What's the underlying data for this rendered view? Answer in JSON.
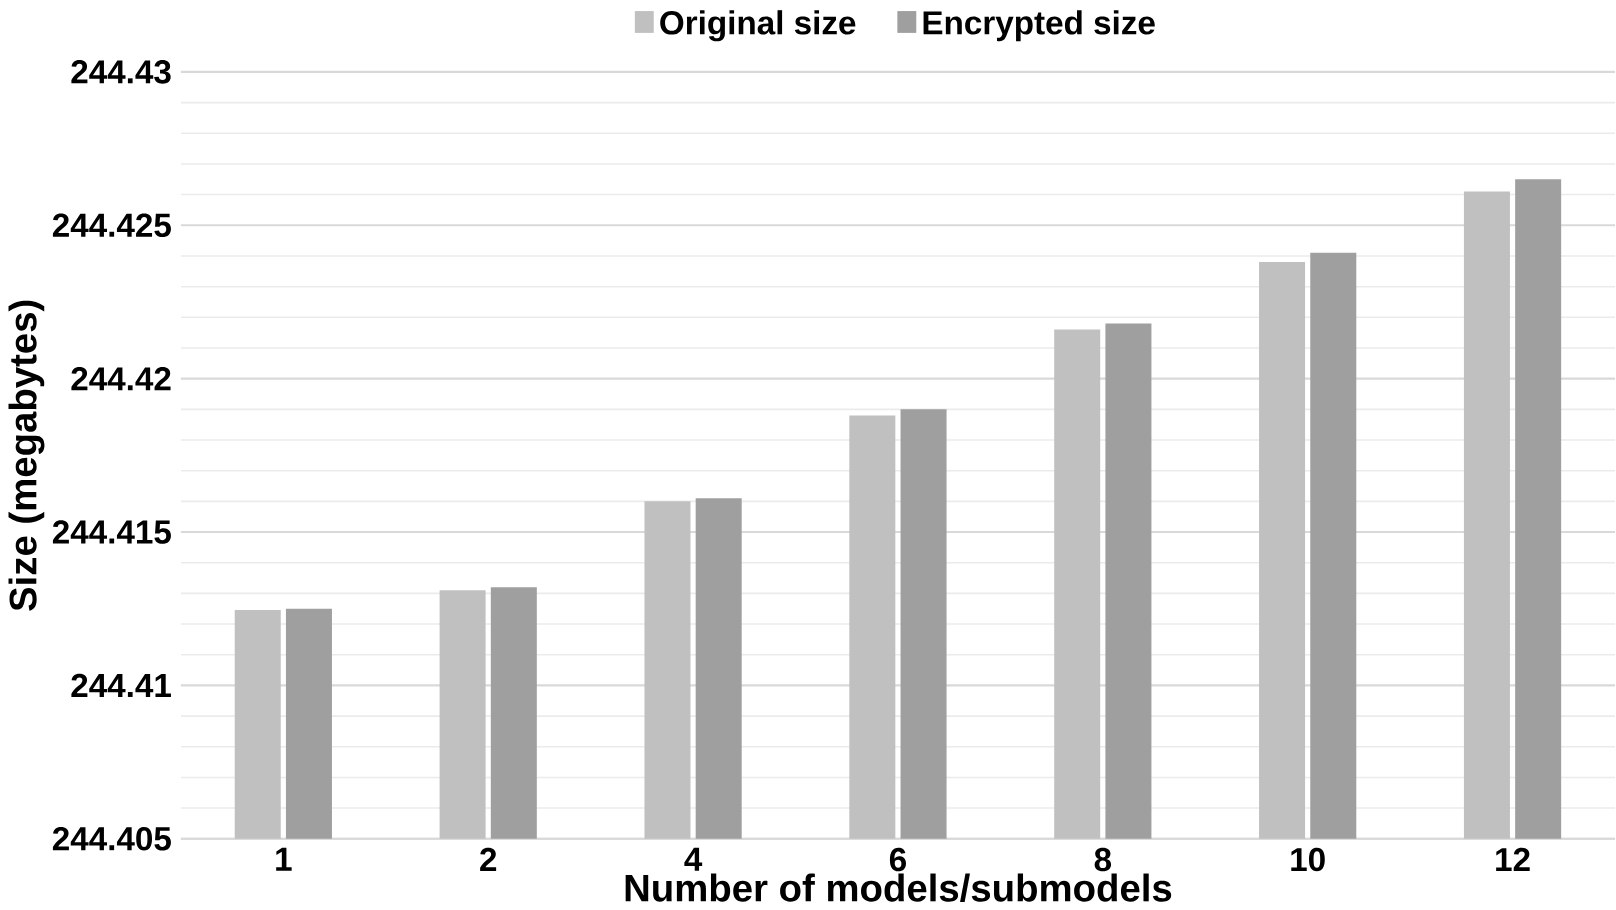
{
  "chart_data": {
    "type": "bar",
    "xlabel": "Number of models/submodels",
    "ylabel": "Size (megabytes)",
    "categories": [
      "1",
      "2",
      "4",
      "6",
      "8",
      "10",
      "12"
    ],
    "series": [
      {
        "name": "Original size",
        "color": "#c0c0c0",
        "values": [
          244.41246,
          244.4131,
          244.416,
          244.4188,
          244.4216,
          244.4238,
          244.4261
        ]
      },
      {
        "name": "Encrypted size",
        "color": "#9f9f9f",
        "values": [
          244.4125,
          244.4132,
          244.4161,
          244.419,
          244.4218,
          244.4241,
          244.4265
        ]
      }
    ],
    "ylim": [
      244.405,
      244.43
    ],
    "yticks": [
      244.405,
      244.41,
      244.415,
      244.42,
      244.425,
      244.43
    ],
    "grid": "y",
    "legend": "top"
  }
}
